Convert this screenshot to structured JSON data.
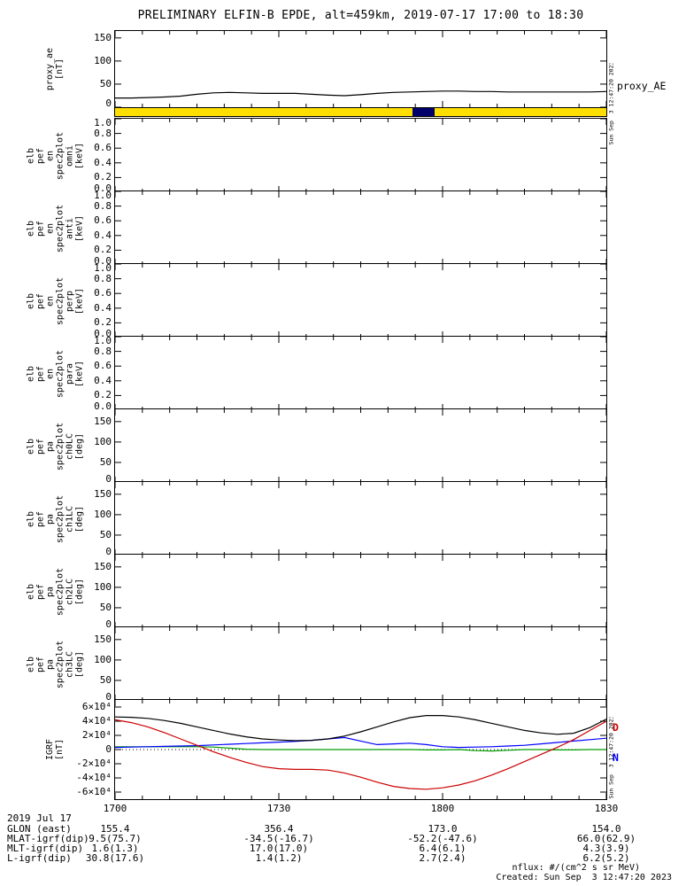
{
  "page": {
    "title": "PRELIMINARY ELFIN-B EPDE, alt=459km, 2019-07-17 17:00 to 18:30",
    "proxy_right_label": "proxy_AE"
  },
  "colors": {
    "line_black": "#000000",
    "line_red": "#cc0000",
    "line_blue": "#0000ff",
    "line_green": "#009e00",
    "flag_yellow": "#ffdf00",
    "flag_navy": "#00006a"
  },
  "time_axis": {
    "date_label": "2019 Jul 17",
    "minor_step_min": 5,
    "ticks": [
      {
        "min": 0,
        "label": "1700"
      },
      {
        "min": 30,
        "label": "1730"
      },
      {
        "min": 60,
        "label": "1800"
      },
      {
        "min": 90,
        "label": "1830"
      }
    ]
  },
  "footer": {
    "rows": [
      {
        "label": "GLON (east)",
        "values": [
          "155.4",
          "356.4",
          "173.0",
          "154.0"
        ]
      },
      {
        "label": "MLAT-igrf(dip)",
        "values": [
          "9.5(75.7)",
          "-34.5(-16.7)",
          "-52.2(-47.6)",
          "66.0(62.9)"
        ]
      },
      {
        "label": "MLT-igrf(dip)",
        "values": [
          "1.6(1.3)",
          "17.0(17.0)",
          "6.4(6.1)",
          "4.3(3.9)"
        ]
      },
      {
        "label": "L-igrf(dip)",
        "values": [
          "30.8(17.6)",
          "1.4(1.2)",
          "2.7(2.4)",
          "6.2(5.2)"
        ]
      }
    ],
    "note_flux": "nflux: #/(cm^2 s sr MeV)",
    "note_created": "Created: Sun Sep  3 12:47:20 2023",
    "vertical_timestamp": "Sun Sep  3 12:47:20 2023"
  },
  "chart_data": [
    {
      "id": "proxy_ae",
      "type": "line",
      "variable": "proxy_ae",
      "left_label": "proxy_ae\n[nT]",
      "ylim": [
        0,
        165
      ],
      "yticks": [
        {
          "v": 150,
          "t": "150"
        },
        {
          "v": 100,
          "t": "100"
        },
        {
          "v": 50,
          "t": "50"
        },
        {
          "v": 0,
          "t": "0"
        }
      ],
      "x": [
        0,
        3,
        6,
        9,
        12,
        15,
        18,
        21,
        24,
        27,
        30,
        33,
        36,
        39,
        42,
        45,
        48,
        51,
        54,
        57,
        60,
        63,
        66,
        69,
        72,
        75,
        78,
        81,
        84,
        87,
        90
      ],
      "series": [
        {
          "name": "proxy_AE",
          "color": "#000000",
          "y": [
            20,
            20,
            21,
            22,
            24,
            28,
            31,
            32,
            31,
            30,
            30,
            30,
            28,
            26,
            25,
            27,
            30,
            32,
            33,
            34,
            35,
            35,
            34,
            34,
            33,
            33,
            33,
            33,
            33,
            33,
            34
          ]
        }
      ]
    },
    {
      "id": "flag_bar",
      "type": "flag",
      "base_color": "#ffdf00",
      "segments": [
        {
          "start_min": 54.5,
          "end_min": 58.5,
          "color": "#00006a"
        }
      ]
    },
    {
      "id": "en_spec2plot_omni",
      "type": "spectrogram",
      "variable": "elb_pef_en_spec2plot_omni",
      "left_label": "elb\npef\nen\nspec2plot\nomni\n[keV]",
      "ylim": [
        0,
        1
      ],
      "yticks": [
        {
          "v": 1.0,
          "t": "1.0"
        },
        {
          "v": 0.8,
          "t": "0.8"
        },
        {
          "v": 0.6,
          "t": "0.6"
        },
        {
          "v": 0.4,
          "t": "0.4"
        },
        {
          "v": 0.2,
          "t": "0.2"
        },
        {
          "v": 0.0,
          "t": "0.0"
        }
      ],
      "x": [],
      "series": []
    },
    {
      "id": "en_spec2plot_anti",
      "type": "spectrogram",
      "variable": "elb_pef_en_spec2plot_anti",
      "left_label": "elb\npef\nen\nspec2plot\nanti\n[keV]",
      "ylim": [
        0,
        1
      ],
      "yticks": [
        {
          "v": 1.0,
          "t": "1.0"
        },
        {
          "v": 0.8,
          "t": "0.8"
        },
        {
          "v": 0.6,
          "t": "0.6"
        },
        {
          "v": 0.4,
          "t": "0.4"
        },
        {
          "v": 0.2,
          "t": "0.2"
        },
        {
          "v": 0.0,
          "t": "0.0"
        }
      ],
      "x": [],
      "series": []
    },
    {
      "id": "en_spec2plot_perp",
      "type": "spectrogram",
      "variable": "elb_pef_en_spec2plot_perp",
      "left_label": "elb\npef\nen\nspec2plot\nperp\n[keV]",
      "ylim": [
        0,
        1
      ],
      "yticks": [
        {
          "v": 1.0,
          "t": "1.0"
        },
        {
          "v": 0.8,
          "t": "0.8"
        },
        {
          "v": 0.6,
          "t": "0.6"
        },
        {
          "v": 0.4,
          "t": "0.4"
        },
        {
          "v": 0.2,
          "t": "0.2"
        },
        {
          "v": 0.0,
          "t": "0.0"
        }
      ],
      "x": [],
      "series": []
    },
    {
      "id": "en_spec2plot_para",
      "type": "spectrogram",
      "variable": "elb_pef_en_spec2plot_para",
      "left_label": "elb\npef\nen\nspec2plot\npara\n[keV]",
      "ylim": [
        0,
        1
      ],
      "yticks": [
        {
          "v": 1.0,
          "t": "1.0"
        },
        {
          "v": 0.8,
          "t": "0.8"
        },
        {
          "v": 0.6,
          "t": "0.6"
        },
        {
          "v": 0.4,
          "t": "0.4"
        },
        {
          "v": 0.2,
          "t": "0.2"
        },
        {
          "v": 0.0,
          "t": "0.0"
        }
      ],
      "x": [],
      "series": []
    },
    {
      "id": "pa_spec2plot_ch0LC",
      "type": "spectrogram",
      "variable": "elb_pef_pa_spec2plot_ch0LC",
      "left_label": "elb\npef\npa\nspec2plot\nch0LC\n[deg]",
      "ylim": [
        0,
        180
      ],
      "yticks": [
        {
          "v": 150,
          "t": "150"
        },
        {
          "v": 100,
          "t": "100"
        },
        {
          "v": 50,
          "t": "50"
        },
        {
          "v": 0,
          "t": "0"
        }
      ],
      "x": [],
      "series": []
    },
    {
      "id": "pa_spec2plot_ch1LC",
      "type": "spectrogram",
      "variable": "elb_pef_pa_spec2plot_ch1LC",
      "left_label": "elb\npef\npa\nspec2plot\nch1LC\n[deg]",
      "ylim": [
        0,
        180
      ],
      "yticks": [
        {
          "v": 150,
          "t": "150"
        },
        {
          "v": 100,
          "t": "100"
        },
        {
          "v": 50,
          "t": "50"
        },
        {
          "v": 0,
          "t": "0"
        }
      ],
      "x": [],
      "series": []
    },
    {
      "id": "pa_spec2plot_ch2LC",
      "type": "spectrogram",
      "variable": "elb_pef_pa_spec2plot_ch2LC",
      "left_label": "elb\npef\npa\nspec2plot\nch2LC\n[deg]",
      "ylim": [
        0,
        180
      ],
      "yticks": [
        {
          "v": 150,
          "t": "150"
        },
        {
          "v": 100,
          "t": "100"
        },
        {
          "v": 50,
          "t": "50"
        },
        {
          "v": 0,
          "t": "0"
        }
      ],
      "x": [],
      "series": []
    },
    {
      "id": "pa_spec2plot_ch3LC",
      "type": "spectrogram",
      "variable": "elb_pef_pa_spec2plot_ch3LC",
      "left_label": "elb\npef\npa\nspec2plot\nch3LC\n[deg]",
      "ylim": [
        0,
        180
      ],
      "yticks": [
        {
          "v": 150,
          "t": "150"
        },
        {
          "v": 100,
          "t": "100"
        },
        {
          "v": 50,
          "t": "50"
        },
        {
          "v": 0,
          "t": "0"
        }
      ],
      "x": [],
      "series": []
    },
    {
      "id": "igrf",
      "type": "line",
      "variable": "IGRF",
      "left_label": "IGRF\n[nT]",
      "ylim": [
        -70000,
        70000
      ],
      "zero_line": true,
      "yticks": [
        {
          "v": 60000,
          "t": "6×10⁴"
        },
        {
          "v": 40000,
          "t": "4×10⁴"
        },
        {
          "v": 20000,
          "t": "2×10⁴"
        },
        {
          "v": 0,
          "t": "0"
        },
        {
          "v": -20000,
          "t": "-2×10⁴"
        },
        {
          "v": -40000,
          "t": "-4×10⁴"
        },
        {
          "v": -60000,
          "t": "-6×10⁴"
        }
      ],
      "legend": [
        {
          "label": "D",
          "color": "#cc0000"
        },
        {
          "label": "N",
          "color": "#0000ff"
        }
      ],
      "x": [
        0,
        3,
        6,
        9,
        12,
        15,
        18,
        21,
        24,
        27,
        30,
        33,
        36,
        39,
        42,
        45,
        48,
        51,
        54,
        57,
        60,
        63,
        66,
        69,
        72,
        75,
        78,
        81,
        84,
        87,
        90
      ],
      "series": [
        {
          "name": "green",
          "color": "#009e00",
          "y": [
            4000,
            4000,
            4000,
            4000,
            4000,
            4000,
            3500,
            2000,
            500,
            0,
            0,
            0,
            0,
            0,
            0,
            0,
            0,
            0,
            0,
            -500,
            -500,
            0,
            -1500,
            -2000,
            -1000,
            0,
            0,
            -500,
            -500,
            0,
            0
          ]
        },
        {
          "name": "N",
          "color": "#0000ff",
          "y": [
            3000,
            3500,
            4000,
            4500,
            5000,
            5500,
            6500,
            7500,
            8500,
            9500,
            10500,
            11500,
            13000,
            15000,
            17000,
            12000,
            7000,
            8000,
            9000,
            7000,
            4000,
            3000,
            3500,
            4000,
            5000,
            6000,
            8000,
            10000,
            12000,
            14000,
            16000
          ]
        },
        {
          "name": "D",
          "color": "#cc0000",
          "y": [
            42000,
            38000,
            32000,
            24000,
            15000,
            6000,
            -3000,
            -11000,
            -18000,
            -24000,
            -27000,
            -28000,
            -28000,
            -29000,
            -33000,
            -39000,
            -46000,
            -52000,
            -55000,
            -56000,
            -54000,
            -50000,
            -44000,
            -36000,
            -27000,
            -17000,
            -7000,
            3000,
            14000,
            27000,
            40000
          ]
        },
        {
          "name": "black",
          "color": "#000000",
          "y": [
            46000,
            45500,
            44000,
            41000,
            37000,
            32000,
            27000,
            22000,
            18000,
            15000,
            13500,
            12500,
            13000,
            15000,
            19000,
            25000,
            32000,
            39000,
            45000,
            48000,
            48000,
            46000,
            42000,
            37000,
            32000,
            27000,
            23500,
            21500,
            23000,
            31000,
            43000
          ]
        }
      ]
    }
  ]
}
